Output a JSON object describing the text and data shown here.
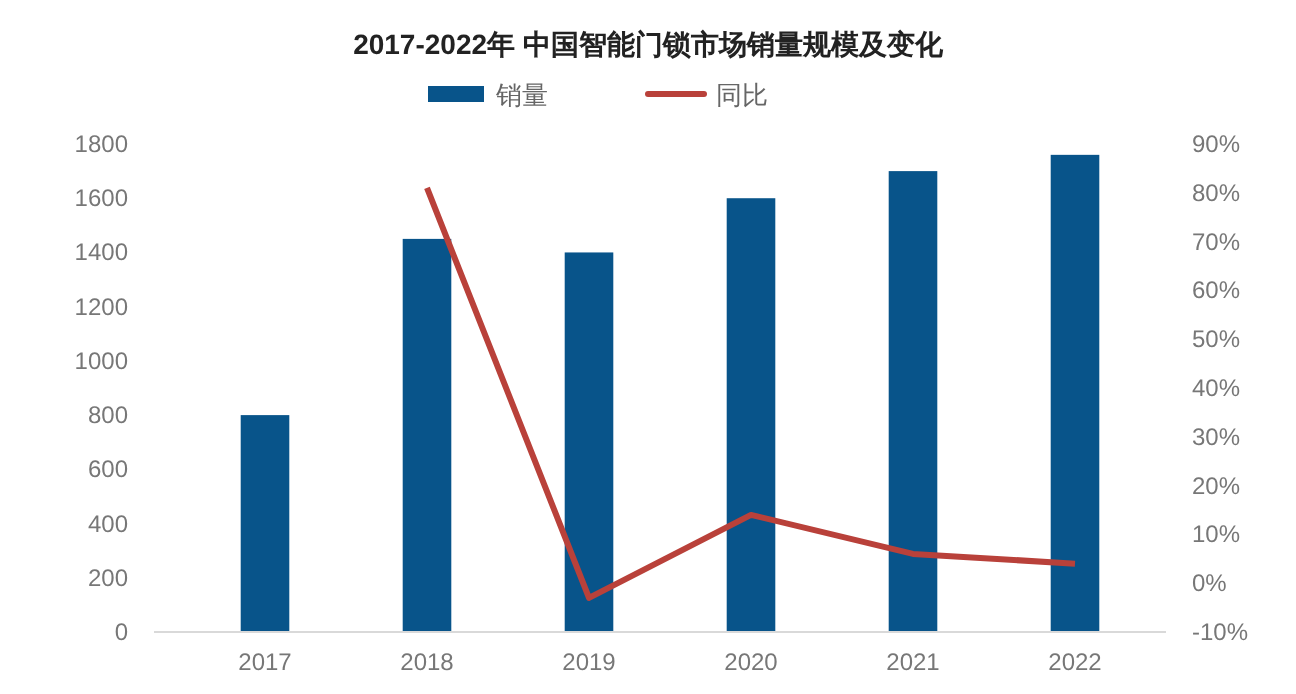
{
  "chart_data": {
    "type": "bar",
    "title": "2017-2022年 中国智能门锁市场销量规模及变化",
    "categories": [
      "2017",
      "2018",
      "2019",
      "2020",
      "2021",
      "2022"
    ],
    "series": [
      {
        "name": "销量",
        "color": "#08548a",
        "values": [
          800,
          1450,
          1400,
          1600,
          1700,
          1760
        ]
      },
      {
        "name": "同比",
        "type": "line",
        "axis": "y2",
        "color": "#b9413a",
        "values": [
          null,
          81,
          -3,
          14,
          6,
          4
        ]
      }
    ],
    "ylim": [
      0,
      1800
    ],
    "yticks": [
      0,
      200,
      400,
      600,
      800,
      1000,
      1200,
      1400,
      1600,
      1800
    ],
    "y2lim": [
      -10,
      90
    ],
    "y2ticks": [
      {
        "value": -10,
        "label": "-10%"
      },
      {
        "value": 0,
        "label": "0%"
      },
      {
        "value": 10,
        "label": "10%"
      },
      {
        "value": 20,
        "label": "20%"
      },
      {
        "value": 30,
        "label": "30%"
      },
      {
        "value": 40,
        "label": "40%"
      },
      {
        "value": 50,
        "label": "50%"
      },
      {
        "value": 60,
        "label": "60%"
      },
      {
        "value": 70,
        "label": "70%"
      },
      {
        "value": 80,
        "label": "80%"
      },
      {
        "value": 90,
        "label": "90%"
      }
    ],
    "legend": "top",
    "grid": false,
    "marker": "none",
    "line_style": "solid"
  }
}
